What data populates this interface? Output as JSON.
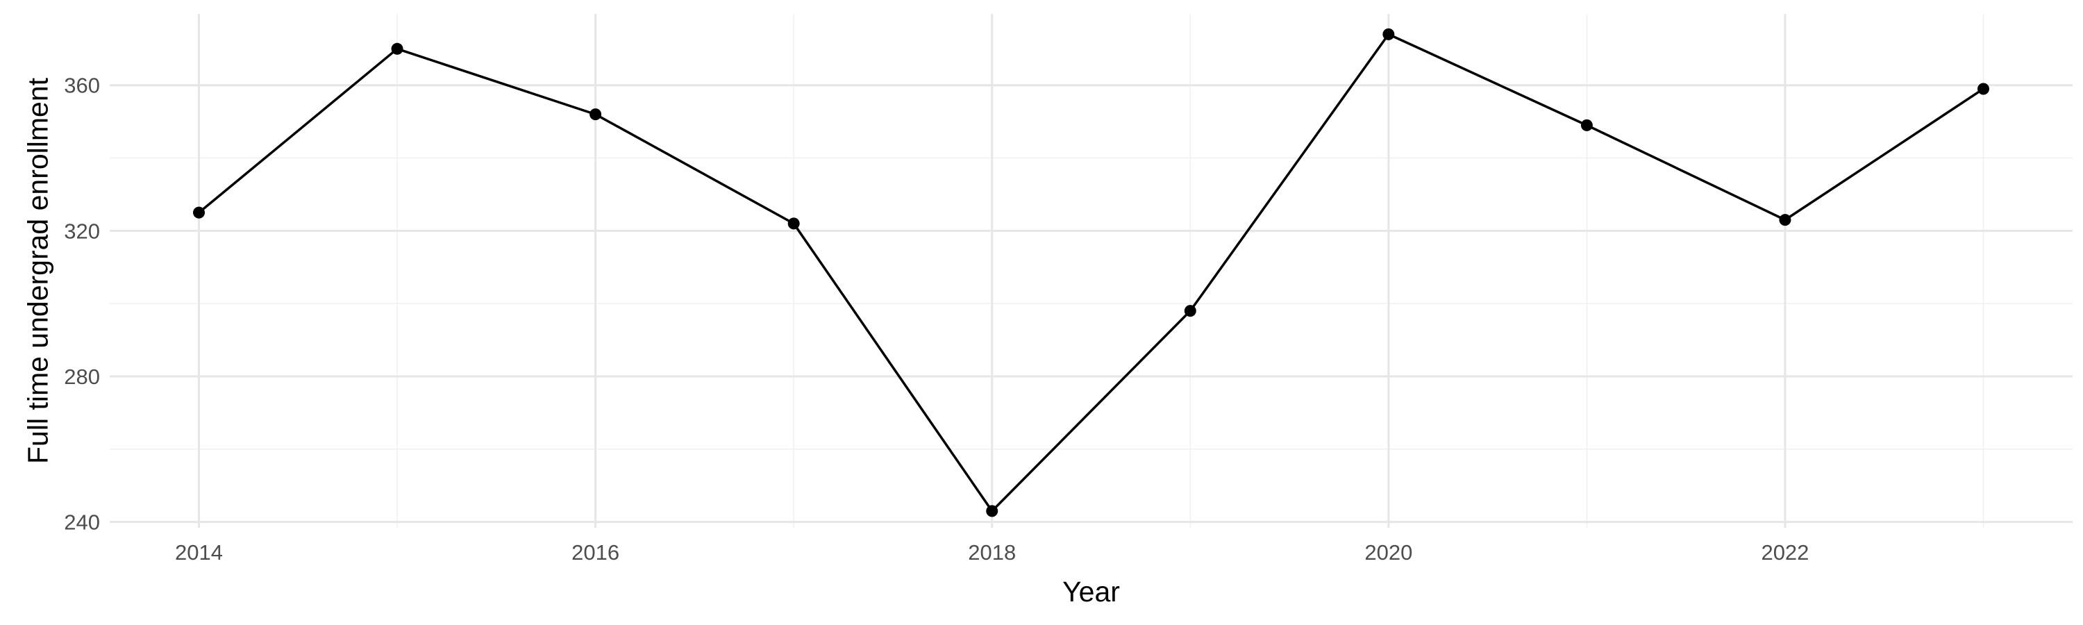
{
  "chart_data": {
    "type": "line",
    "x": [
      2014,
      2015,
      2016,
      2017,
      2018,
      2019,
      2020,
      2021,
      2022,
      2023
    ],
    "series": [
      {
        "values": [
          325,
          370,
          352,
          322,
          243,
          298,
          374,
          349,
          323,
          359
        ]
      }
    ],
    "xlabel": "Year",
    "ylabel": "Full time undergrad enrollment",
    "x_ticks": [
      "2014",
      "2016",
      "2018",
      "2020",
      "2022"
    ],
    "y_ticks": [
      "240",
      "280",
      "320",
      "360"
    ],
    "xlim": [
      2013.55,
      2023.45
    ],
    "ylim": [
      238.4,
      379.6
    ],
    "grid": true,
    "legend": "none",
    "markers": true,
    "line_color": "#000000",
    "grid_color": "#ebebeb",
    "background": "#ffffff"
  }
}
